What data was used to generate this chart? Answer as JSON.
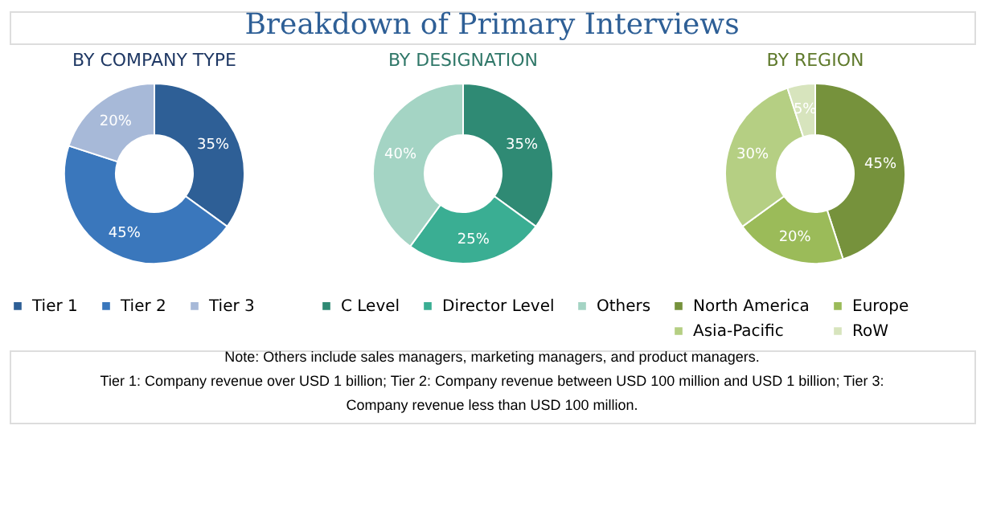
{
  "chart_data": [
    {
      "type": "donut",
      "title": "BY COMPANY TYPE",
      "annotations": [
        "Breakdown of Primary Interviews"
      ],
      "categories": [
        "Tier 1",
        "Tier 2",
        "Tier 3"
      ],
      "values": [
        35,
        45,
        20
      ],
      "colors": [
        "#2e5f96",
        "#3a77bc",
        "#a7b9d8"
      ],
      "value_labels": [
        "35%",
        "45%",
        "20%"
      ],
      "legend": "bottom"
    },
    {
      "type": "donut",
      "title": "BY DESIGNATION",
      "categories": [
        "C Level",
        "Director Level",
        "Others"
      ],
      "values": [
        35,
        25,
        40
      ],
      "colors": [
        "#2f8a74",
        "#3aae93",
        "#a4d4c4"
      ],
      "value_labels": [
        "35%",
        "25%",
        "40%"
      ],
      "legend": "bottom"
    },
    {
      "type": "donut",
      "title": "BY REGION",
      "annotations": [
        "Note: Others include sales managers, marketing managers, and product managers.",
        "Tier 1: Company revenue over USD 1 billion; Tier 2: Company revenue between USD 100 million and USD 1 billion; Tier 3: Company revenue less than USD 100 million."
      ],
      "categories": [
        "North America",
        "Europe",
        "Asia-Pacific",
        "RoW"
      ],
      "values": [
        45,
        20,
        30,
        5
      ],
      "colors": [
        "#76923c",
        "#9bbb59",
        "#b5cf83",
        "#d7e4bd"
      ],
      "value_labels": [
        "45%",
        "20%",
        "30%",
        "5%"
      ],
      "legend": "bottom"
    }
  ]
}
